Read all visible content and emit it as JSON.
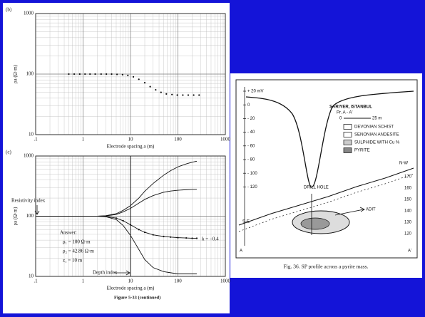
{
  "chart_data": [
    {
      "type": "scatter",
      "panel": "(b)",
      "xlabel": "Electrode spacing a (m)",
      "ylabel": "ρa (Ω·m)",
      "xlim": [
        0.1,
        1000
      ],
      "ylim": [
        10,
        1000
      ],
      "log_x": true,
      "log_y": true,
      "grid": true,
      "minor_grid": true,
      "xticks": [
        {
          "value": 0.1,
          "label": ".1"
        },
        1,
        10,
        100,
        1000
      ],
      "yticks": [
        10,
        100,
        1000
      ],
      "x": [
        0.5,
        0.65,
        0.85,
        1.1,
        1.4,
        1.8,
        2.4,
        3.1,
        4,
        5.2,
        6.8,
        8.8,
        11.5,
        15,
        20,
        26,
        34,
        44,
        57,
        75,
        97,
        127,
        165,
        215,
        280
      ],
      "series": [
        {
          "color": "#111111",
          "values": [
            100,
            100,
            100,
            100,
            100,
            100,
            100,
            100,
            100,
            99,
            98,
            95,
            90,
            82,
            72,
            62,
            55,
            50,
            47,
            46,
            45,
            45,
            45,
            45,
            45
          ]
        }
      ]
    },
    {
      "type": "line",
      "panel": "(c)",
      "xlabel": "Electrode spacing a (m)",
      "ylabel": "ρa (Ω·m)",
      "xlim": [
        0.1,
        1000
      ],
      "ylim": [
        10,
        1000
      ],
      "log_x": true,
      "log_y": true,
      "grid": true,
      "minor_grid": true,
      "xticks": [
        {
          "value": 0.1,
          "label": ".1"
        },
        1,
        10,
        100,
        1000
      ],
      "yticks": [
        10,
        100,
        1000
      ],
      "vline": 10,
      "x": [
        0.1,
        0.5,
        1,
        2,
        3,
        5,
        7,
        10,
        15,
        20,
        30,
        50,
        70,
        100,
        150,
        200,
        250
      ],
      "series": [
        {
          "color": "#111111",
          "values": [
            100,
            100,
            100,
            100,
            102,
            110,
            125,
            150,
            200,
            260,
            350,
            480,
            570,
            660,
            740,
            790,
            820
          ]
        },
        {
          "color": "#111111",
          "values": [
            100,
            100,
            100,
            100,
            101,
            107,
            118,
            135,
            165,
            190,
            220,
            250,
            262,
            270,
            276,
            279,
            280
          ]
        },
        {
          "color": "#111111",
          "markers": true,
          "values": [
            100,
            100,
            100,
            100,
            99,
            93,
            84,
            72,
            60,
            54,
            49,
            46,
            45,
            44,
            43.5,
            43,
            43
          ]
        },
        {
          "color": "#111111",
          "values": [
            100,
            100,
            100,
            100,
            98,
            88,
            70,
            48,
            28,
            19,
            14,
            12,
            11.5,
            11,
            11,
            11,
            11
          ]
        }
      ],
      "annotations": {
        "resistivity_index": "Resistivity index",
        "depth_index": "Depth index",
        "answer": "Answer:",
        "rho1": "ρ₁ = 100 Ω·m",
        "rho2": "ρ₂ = 42.86 Ω·m",
        "z1": "z₁ = 10 m",
        "k": "k = −0.4"
      },
      "caption": "Figure 5-33   (continued)"
    }
  ],
  "sp_figure": {
    "y_labels": [
      "+ 20 mV",
      "0",
      "- 20",
      "- 40",
      "- 60",
      "- 80",
      "- 100",
      "- 120"
    ],
    "title": "SARIYER, ISTANBUL",
    "profile": "Pr.  A - A'",
    "scale": [
      "0",
      "25 m"
    ],
    "legend": [
      "DEVONIAN SCHIST",
      "SENONIAN ANDESITE",
      "SULPHIDE WITH Cu %",
      "PYRITE"
    ],
    "drill_hole": "DRILL HOLE",
    "adit": "ADIT",
    "nw": "N-W",
    "se": "S-E",
    "a": "A",
    "a_prime": "A'",
    "elevations": [
      "120",
      "130",
      "140",
      "150",
      "160",
      "170"
    ],
    "caption": "Fig. 36.  SP profile across a pyrite mass."
  }
}
